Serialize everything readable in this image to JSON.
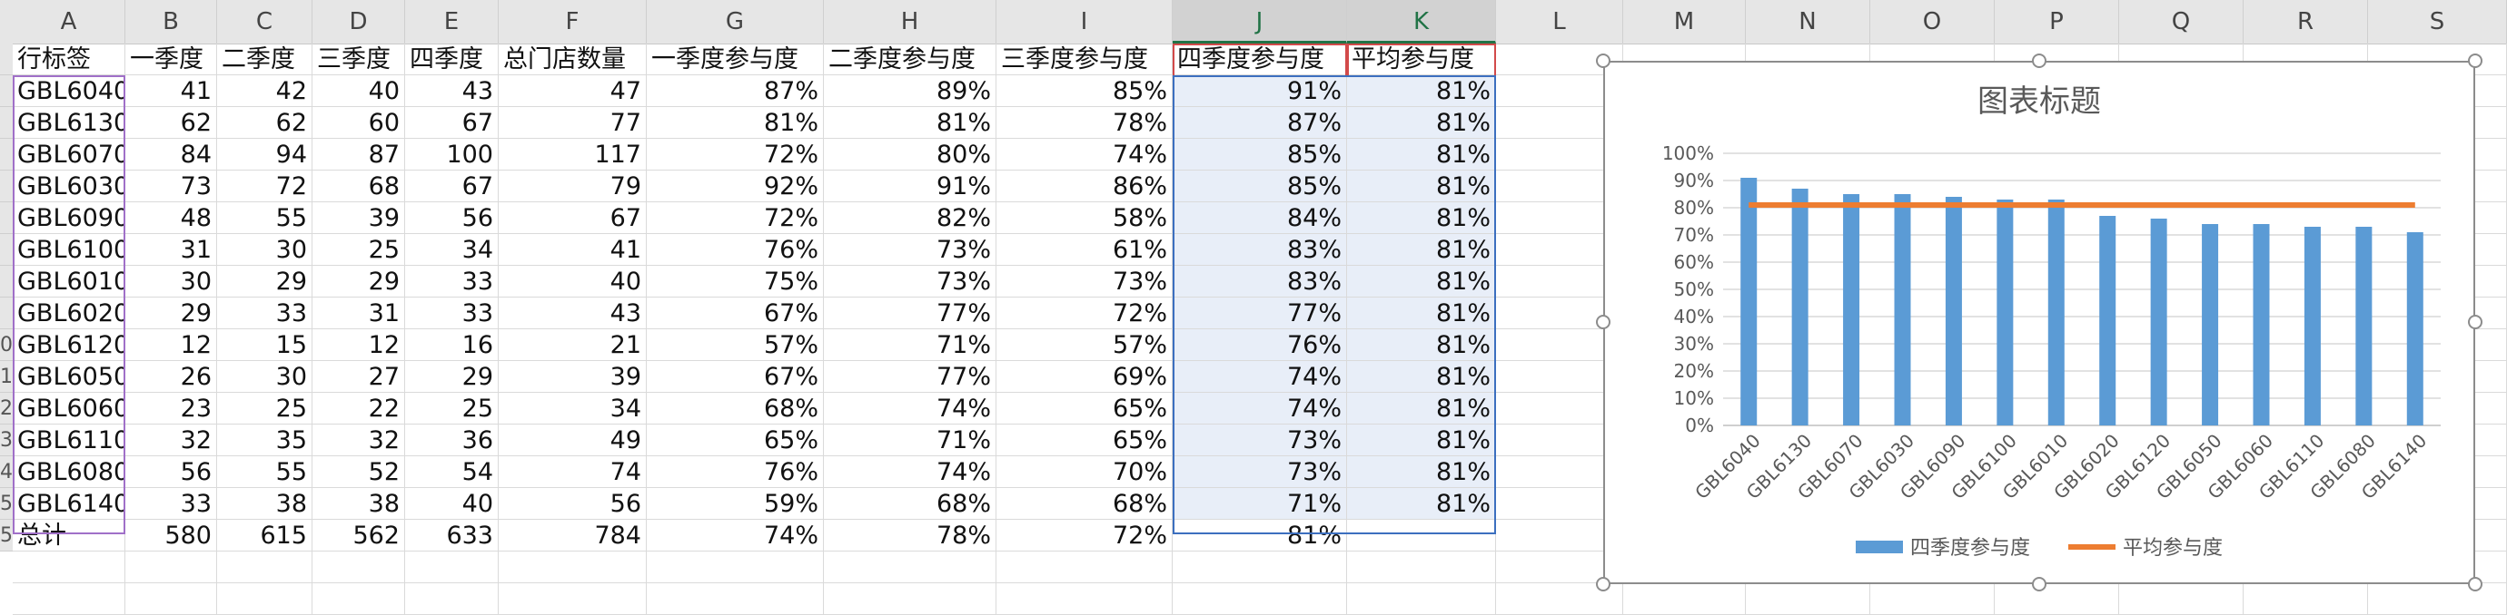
{
  "sheet": {
    "columns": [
      "A",
      "B",
      "C",
      "D",
      "E",
      "F",
      "G",
      "H",
      "I",
      "J",
      "K",
      "L",
      "M",
      "N",
      "O",
      "P",
      "Q",
      "R",
      "S"
    ],
    "selected_columns": [
      "J",
      "K"
    ],
    "headers": [
      "行标签",
      "一季度",
      "二季度",
      "三季度",
      "四季度",
      "总门店数量",
      "一季度参与度",
      "二季度参与度",
      "三季度参与度",
      "四季度参与度",
      "平均参与度"
    ],
    "rows": [
      [
        "GBL6040",
        "41",
        "42",
        "40",
        "43",
        "47",
        "87%",
        "89%",
        "85%",
        "91%",
        "81%"
      ],
      [
        "GBL6130",
        "62",
        "62",
        "60",
        "67",
        "77",
        "81%",
        "81%",
        "78%",
        "87%",
        "81%"
      ],
      [
        "GBL6070",
        "84",
        "94",
        "87",
        "100",
        "117",
        "72%",
        "80%",
        "74%",
        "85%",
        "81%"
      ],
      [
        "GBL6030",
        "73",
        "72",
        "68",
        "67",
        "79",
        "92%",
        "91%",
        "86%",
        "85%",
        "81%"
      ],
      [
        "GBL6090",
        "48",
        "55",
        "39",
        "56",
        "67",
        "72%",
        "82%",
        "58%",
        "84%",
        "81%"
      ],
      [
        "GBL6100",
        "31",
        "30",
        "25",
        "34",
        "41",
        "76%",
        "73%",
        "61%",
        "83%",
        "81%"
      ],
      [
        "GBL6010",
        "30",
        "29",
        "29",
        "33",
        "40",
        "75%",
        "73%",
        "73%",
        "83%",
        "81%"
      ],
      [
        "GBL6020",
        "29",
        "33",
        "31",
        "33",
        "43",
        "67%",
        "77%",
        "72%",
        "77%",
        "81%"
      ],
      [
        "GBL6120",
        "12",
        "15",
        "12",
        "16",
        "21",
        "57%",
        "71%",
        "57%",
        "76%",
        "81%"
      ],
      [
        "GBL6050",
        "26",
        "30",
        "27",
        "29",
        "39",
        "67%",
        "77%",
        "69%",
        "74%",
        "81%"
      ],
      [
        "GBL6060",
        "23",
        "25",
        "22",
        "25",
        "34",
        "68%",
        "74%",
        "65%",
        "74%",
        "81%"
      ],
      [
        "GBL6110",
        "32",
        "35",
        "32",
        "36",
        "49",
        "65%",
        "71%",
        "65%",
        "73%",
        "81%"
      ],
      [
        "GBL6080",
        "56",
        "55",
        "52",
        "54",
        "74",
        "76%",
        "74%",
        "70%",
        "73%",
        "81%"
      ],
      [
        "GBL6140",
        "33",
        "38",
        "38",
        "40",
        "56",
        "59%",
        "68%",
        "68%",
        "71%",
        "81%"
      ]
    ],
    "total": [
      "总计",
      "580",
      "615",
      "562",
      "633",
      "784",
      "74%",
      "78%",
      "72%",
      "81%",
      ""
    ],
    "row_stub_labels": [
      "",
      "",
      "",
      "",
      "",
      "",
      "",
      "",
      "",
      "0",
      "1",
      "2",
      "3",
      "4",
      "5",
      "5"
    ]
  },
  "chart_data": {
    "type": "bar",
    "title": "图表标题",
    "categories": [
      "GBL6040",
      "GBL6130",
      "GBL6070",
      "GBL6030",
      "GBL6090",
      "GBL6100",
      "GBL6010",
      "GBL6020",
      "GBL6120",
      "GBL6050",
      "GBL6060",
      "GBL6110",
      "GBL6080",
      "GBL6140"
    ],
    "series": [
      {
        "name": "四季度参与度",
        "type": "bar",
        "color": "#5b9bd5",
        "values": [
          91,
          87,
          85,
          85,
          84,
          83,
          83,
          77,
          76,
          74,
          74,
          73,
          73,
          71
        ]
      },
      {
        "name": "平均参与度",
        "type": "line",
        "color": "#ed7d31",
        "values": [
          81,
          81,
          81,
          81,
          81,
          81,
          81,
          81,
          81,
          81,
          81,
          81,
          81,
          81
        ]
      }
    ],
    "y_ticks": [
      "0%",
      "10%",
      "20%",
      "30%",
      "40%",
      "50%",
      "60%",
      "70%",
      "80%",
      "90%",
      "100%"
    ],
    "ylim": [
      0,
      100
    ],
    "grid": true,
    "legend": "bottom"
  }
}
